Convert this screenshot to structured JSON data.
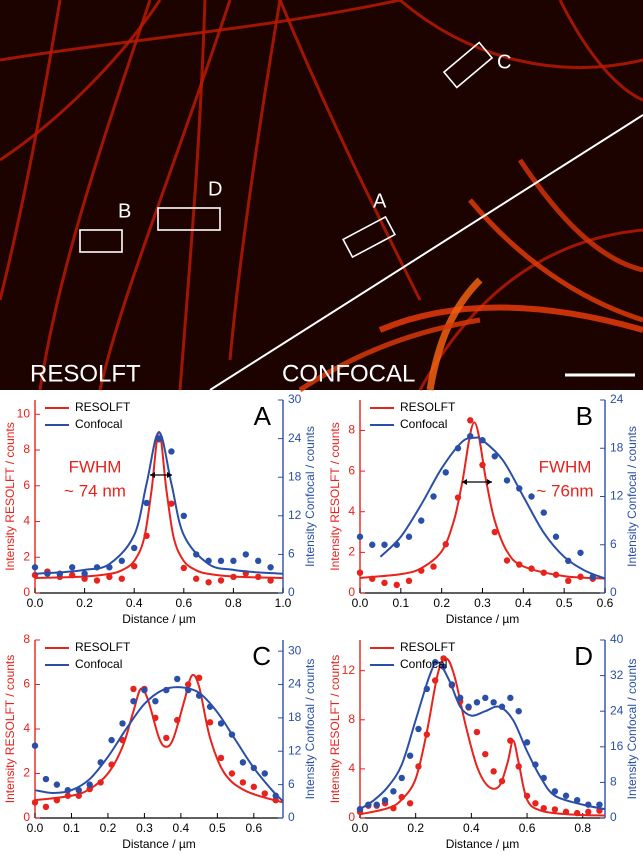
{
  "image": {
    "labels": [
      "RESOLFT",
      "CONFOCAL"
    ],
    "boxes": [
      {
        "label": "A"
      },
      {
        "label": "B"
      },
      {
        "label": "C"
      },
      {
        "label": "D"
      }
    ]
  },
  "chart_data": [
    {
      "type": "scatter",
      "label": "A",
      "annotation": [
        "FWHM",
        "~ 74 nm"
      ],
      "xlabel": "Distance / µm",
      "ylabel": "Intensity RESOLFT / counts",
      "y2label": "Intensity Confocal / counts",
      "xlim": [
        0,
        1
      ],
      "xticks": [
        {
          "value": 0,
          "label": "0.0"
        },
        0.2,
        0.4,
        0.6,
        0.8,
        {
          "value": 1,
          "label": "1.0"
        }
      ],
      "ylim": [
        0,
        10.8
      ],
      "yticks": [
        0,
        2,
        4,
        6,
        8,
        10
      ],
      "y2lim": [
        0,
        30
      ],
      "y2ticks": [
        0,
        6,
        12,
        18,
        24,
        30
      ],
      "series": [
        {
          "name": "RESOLFT",
          "color": "#e8221c",
          "axis": "y",
          "x": [
            0.0,
            0.05,
            0.1,
            0.15,
            0.2,
            0.25,
            0.3,
            0.35,
            0.4,
            0.45,
            0.5,
            0.55,
            0.6,
            0.65,
            0.7,
            0.75,
            0.8,
            0.85,
            0.9,
            0.95
          ],
          "values": [
            1.0,
            1.2,
            0.9,
            1.0,
            0.8,
            0.7,
            0.9,
            0.8,
            1.5,
            3.2,
            8.6,
            5.0,
            1.4,
            0.8,
            0.6,
            0.7,
            0.9,
            1.1,
            0.9,
            0.7
          ],
          "fit": {
            "x": [
              0,
              0.1,
              0.2,
              0.3,
              0.35,
              0.4,
              0.44,
              0.47,
              0.5,
              0.53,
              0.56,
              0.6,
              0.65,
              0.7,
              0.8,
              0.9,
              1.0
            ],
            "values": [
              0.84,
              0.87,
              0.92,
              1.07,
              1.27,
              1.79,
              3.06,
              5.75,
              9.0,
              5.75,
              3.06,
              1.79,
              1.27,
              1.07,
              0.92,
              0.87,
              0.84
            ]
          }
        },
        {
          "name": "Confocal",
          "color": "#2a4fa8",
          "axis": "y2",
          "x": [
            0.0,
            0.05,
            0.1,
            0.15,
            0.2,
            0.25,
            0.3,
            0.35,
            0.4,
            0.45,
            0.5,
            0.55,
            0.6,
            0.65,
            0.7,
            0.75,
            0.8,
            0.85,
            0.9,
            0.95
          ],
          "values": [
            4,
            3,
            3,
            4,
            3,
            4,
            4,
            5,
            7,
            14,
            24,
            22,
            12,
            6,
            5,
            5,
            5,
            6,
            5,
            4
          ],
          "fit": {
            "x": [
              0,
              0.1,
              0.2,
              0.3,
              0.4,
              0.45,
              0.5,
              0.55,
              0.6,
              0.7,
              0.8,
              0.9,
              1.0
            ],
            "values": [
              3,
              3.2,
              3.6,
              4.5,
              9,
              17,
              25,
              17,
              9,
              4.5,
              3.6,
              3.2,
              3
            ]
          }
        }
      ]
    },
    {
      "type": "scatter",
      "label": "B",
      "annotation": [
        "FWHM",
        "~ 76nm"
      ],
      "xlabel": "Distance / µm",
      "ylabel": "Intensity RESOLFT / counts",
      "y2label": "Intensity Confocal / counts",
      "xlim": [
        0,
        0.6
      ],
      "xticks": [
        {
          "value": 0,
          "label": "0.0"
        },
        0.1,
        0.2,
        0.3,
        0.4,
        0.5,
        0.6
      ],
      "ylim": [
        0,
        9.5
      ],
      "yticks": [
        0,
        2,
        4,
        6,
        8
      ],
      "y2lim": [
        0,
        24
      ],
      "y2ticks": [
        0,
        6,
        12,
        18,
        24
      ],
      "series": [
        {
          "name": "RESOLFT",
          "color": "#e8221c",
          "axis": "y",
          "x": [
            0.0,
            0.03,
            0.06,
            0.09,
            0.12,
            0.15,
            0.18,
            0.21,
            0.24,
            0.27,
            0.3,
            0.33,
            0.36,
            0.39,
            0.42,
            0.45,
            0.48,
            0.51,
            0.54,
            0.57
          ],
          "values": [
            1.0,
            0.7,
            0.5,
            0.4,
            0.6,
            1.1,
            1.3,
            2.4,
            4.7,
            8.5,
            6.3,
            3.0,
            1.6,
            1.4,
            1.2,
            1.0,
            0.9,
            0.6,
            0.8,
            0.7
          ],
          "fit": {
            "x": [
              0,
              0.1,
              0.15,
              0.2,
              0.23,
              0.25,
              0.28,
              0.31,
              0.33,
              0.36,
              0.4,
              0.5,
              0.6
            ],
            "values": [
              0.74,
              0.93,
              1.22,
              2.05,
              3.56,
              5.4,
              8.4,
              5.4,
              3.56,
              2.05,
              1.31,
              0.83,
              0.71
            ]
          }
        },
        {
          "name": "Confocal",
          "color": "#2a4fa8",
          "axis": "y2",
          "x": [
            0.0,
            0.03,
            0.06,
            0.09,
            0.12,
            0.15,
            0.18,
            0.21,
            0.24,
            0.27,
            0.3,
            0.33,
            0.36,
            0.39,
            0.42,
            0.45,
            0.48,
            0.51,
            0.54,
            0.57
          ],
          "values": [
            7,
            6,
            6,
            6,
            7,
            9,
            12,
            15,
            18,
            19.5,
            19,
            17,
            14,
            13,
            12,
            10,
            7,
            4,
            5,
            2
          ],
          "fit": {
            "x": [
              0.05,
              0.1,
              0.15,
              0.2,
              0.25,
              0.28,
              0.3,
              0.35,
              0.4,
              0.45,
              0.5,
              0.55,
              0.6
            ],
            "values": [
              4.5,
              7,
              11,
              15.5,
              18.8,
              19.3,
              19,
              16.5,
              12,
              7.5,
              4.5,
              2.8,
              1.8
            ]
          }
        }
      ]
    },
    {
      "type": "scatter",
      "label": "C",
      "xlabel": "Distance / µm",
      "ylabel": "Intensity RESOLFT / counts",
      "y2label": "Intensity Confocal / counts",
      "xlim": [
        0,
        0.68
      ],
      "xticks": [
        {
          "value": 0,
          "label": "0.0"
        },
        0.1,
        0.2,
        0.3,
        0.4,
        0.5,
        0.6
      ],
      "ylim": [
        0,
        8
      ],
      "yticks": [
        0,
        2,
        4,
        6,
        8
      ],
      "y2lim": [
        0,
        32
      ],
      "y2ticks": [
        0,
        6,
        12,
        18,
        24,
        30
      ],
      "series": [
        {
          "name": "RESOLFT",
          "color": "#e8221c",
          "axis": "y",
          "x": [
            0,
            0.03,
            0.06,
            0.09,
            0.12,
            0.15,
            0.18,
            0.21,
            0.24,
            0.27,
            0.3,
            0.33,
            0.36,
            0.39,
            0.42,
            0.45,
            0.48,
            0.51,
            0.54,
            0.57,
            0.6,
            0.63,
            0.66
          ],
          "values": [
            0.7,
            0.5,
            0.8,
            1.0,
            1.0,
            1.3,
            1.6,
            2.4,
            3.5,
            5.8,
            5.8,
            4.5,
            3.6,
            4.4,
            6.0,
            6.3,
            4.3,
            2.7,
            2.0,
            1.6,
            1.4,
            1.1,
            0.8
          ],
          "fit": {
            "x": [
              0,
              0.1,
              0.15,
              0.2,
              0.24,
              0.27,
              0.29,
              0.31,
              0.34,
              0.36,
              0.38,
              0.41,
              0.43,
              0.45,
              0.48,
              0.52,
              0.58,
              0.68
            ],
            "values": [
              0.8,
              1.0,
              1.3,
              2.0,
              3.2,
              4.8,
              5.8,
              5.3,
              3.6,
              3.2,
              3.6,
              5.3,
              6.4,
              5.9,
              3.6,
              2.0,
              1.2,
              0.7
            ]
          }
        },
        {
          "name": "Confocal",
          "color": "#2a4fa8",
          "axis": "y2",
          "x": [
            0,
            0.03,
            0.06,
            0.09,
            0.12,
            0.15,
            0.18,
            0.21,
            0.24,
            0.27,
            0.3,
            0.33,
            0.36,
            0.39,
            0.42,
            0.45,
            0.48,
            0.51,
            0.54,
            0.57,
            0.6,
            0.63,
            0.66
          ],
          "values": [
            13,
            7,
            6,
            5,
            5,
            6,
            10,
            14,
            17,
            21,
            23,
            21,
            23,
            25,
            23,
            22,
            20,
            17,
            15,
            10,
            9,
            8,
            4
          ],
          "fit": {
            "x": [
              0,
              0.05,
              0.1,
              0.15,
              0.2,
              0.25,
              0.3,
              0.35,
              0.4,
              0.45,
              0.5,
              0.55,
              0.6,
              0.65,
              0.68
            ],
            "values": [
              5,
              4.5,
              5,
              7,
              11,
              16,
              20.5,
              23,
              23.5,
              22.5,
              19,
              14,
              9,
              5,
              3
            ]
          }
        }
      ]
    },
    {
      "type": "scatter",
      "label": "D",
      "xlabel": "Distance / µm",
      "ylabel": "Intensity RESOLFT / counts",
      "y2label": "Intensity Confocal / counts",
      "xlim": [
        0,
        0.88
      ],
      "xticks": [
        {
          "value": 0,
          "label": "0.0"
        },
        0.2,
        0.4,
        0.6,
        0.8
      ],
      "ylim": [
        0,
        14.5
      ],
      "yticks": [
        0,
        4,
        8,
        12
      ],
      "y2lim": [
        0,
        40
      ],
      "y2ticks": [
        0,
        8,
        16,
        24,
        32,
        40
      ],
      "series": [
        {
          "name": "RESOLFT",
          "color": "#e8221c",
          "axis": "y",
          "x": [
            0,
            0.03,
            0.06,
            0.09,
            0.12,
            0.15,
            0.18,
            0.21,
            0.24,
            0.27,
            0.3,
            0.33,
            0.36,
            0.39,
            0.42,
            0.45,
            0.48,
            0.51,
            0.54,
            0.57,
            0.6,
            0.63,
            0.66,
            0.7,
            0.74,
            0.78,
            0.82,
            0.86
          ],
          "values": [
            0.5,
            1.0,
            1.0,
            1.2,
            0.8,
            1.7,
            1.2,
            4.2,
            6.8,
            11.2,
            13.0,
            10.8,
            9.5,
            9.0,
            7.0,
            5.2,
            3.8,
            3.0,
            6.3,
            4.2,
            1.8,
            1.2,
            0.8,
            0.7,
            0.5,
            0.4,
            0.5,
            0.6
          ],
          "fit": {
            "x": [
              0,
              0.1,
              0.15,
              0.2,
              0.24,
              0.28,
              0.31,
              0.34,
              0.38,
              0.42,
              0.46,
              0.5,
              0.53,
              0.55,
              0.57,
              0.6,
              0.65,
              0.75,
              0.88
            ],
            "values": [
              0.3,
              0.8,
              1.5,
              3.2,
              7,
              11.8,
              13,
              11.5,
              7.5,
              4.2,
              2.6,
              2.6,
              4.5,
              6.3,
              4.5,
              1.5,
              0.6,
              0.3,
              0.2
            ]
          }
        },
        {
          "name": "Confocal",
          "color": "#2a4fa8",
          "axis": "y2",
          "x": [
            0,
            0.03,
            0.06,
            0.09,
            0.12,
            0.15,
            0.18,
            0.21,
            0.24,
            0.27,
            0.3,
            0.33,
            0.36,
            0.39,
            0.42,
            0.45,
            0.48,
            0.51,
            0.54,
            0.57,
            0.6,
            0.63,
            0.66,
            0.7,
            0.74,
            0.78,
            0.82,
            0.86
          ],
          "values": [
            2,
            3,
            3,
            4,
            6,
            9,
            14,
            20,
            29,
            35,
            34,
            30,
            27,
            25,
            26,
            27,
            26,
            25,
            27,
            24,
            17,
            12,
            9,
            6,
            5,
            4,
            3,
            3
          ],
          "fit": {
            "x": [
              0,
              0.05,
              0.1,
              0.15,
              0.2,
              0.25,
              0.28,
              0.32,
              0.36,
              0.4,
              0.45,
              0.5,
              0.55,
              0.6,
              0.65,
              0.7,
              0.8,
              0.88
            ],
            "values": [
              2,
              4,
              7,
              12,
              22,
              32,
              35,
              31,
              25,
              23,
              24,
              25,
              22,
              15,
              9,
              5,
              3,
              2
            ]
          }
        }
      ]
    }
  ]
}
